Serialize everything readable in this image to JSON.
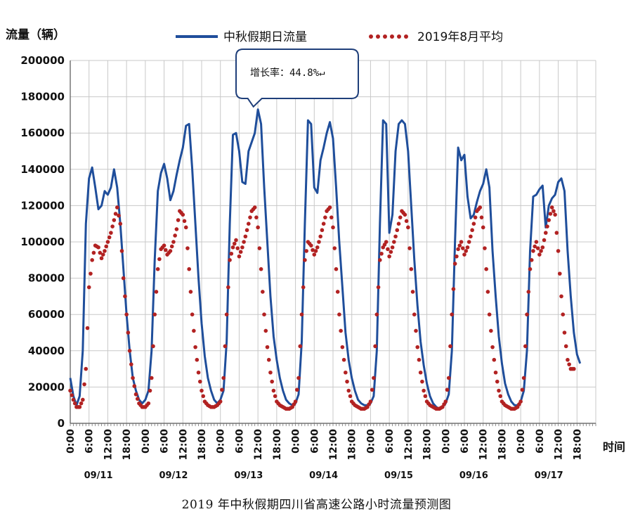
{
  "chart_data": {
    "type": "line",
    "y_unit_label": "流量（辆）",
    "x_axis_title": "时间",
    "caption": "2019 年中秋假期四川省高速公路小时流量预测图",
    "callout": "增长率：44.8%↵",
    "ylim": [
      0,
      200000
    ],
    "y_ticks": [
      0,
      20000,
      40000,
      60000,
      80000,
      100000,
      120000,
      140000,
      160000,
      180000,
      200000
    ],
    "x_tick_labels": [
      "0:00",
      "6:00",
      "12:00",
      "18:00"
    ],
    "days": [
      "09/11",
      "09/12",
      "09/13",
      "09/14",
      "09/15",
      "09/16",
      "09/17"
    ],
    "grid": true,
    "legend_position": "top",
    "series": [
      {
        "name": "中秋假期日流量",
        "style": "solid",
        "color": "#1f4e9b",
        "values": [
          25000,
          15000,
          10000,
          15000,
          40000,
          110000,
          135000,
          141000,
          130000,
          118000,
          120000,
          128000,
          126000,
          130000,
          140000,
          130000,
          110000,
          85000,
          60000,
          40000,
          25000,
          18000,
          13000,
          11000,
          13000,
          18000,
          40000,
          90000,
          128000,
          138000,
          143000,
          135000,
          123000,
          128000,
          137000,
          145000,
          152000,
          164000,
          165000,
          140000,
          110000,
          80000,
          55000,
          37000,
          25000,
          18000,
          13000,
          11000,
          13000,
          18000,
          45000,
          110000,
          159000,
          160000,
          150000,
          133000,
          132000,
          150000,
          155000,
          160000,
          173000,
          165000,
          130000,
          100000,
          70000,
          48000,
          35000,
          25000,
          18000,
          13000,
          11000,
          10000,
          11000,
          16000,
          45000,
          110000,
          167000,
          165000,
          130000,
          127000,
          145000,
          152000,
          160000,
          166000,
          157000,
          130000,
          100000,
          75000,
          50000,
          35000,
          25000,
          18000,
          13000,
          11000,
          10000,
          10000,
          11000,
          15000,
          40000,
          110000,
          167000,
          165000,
          105000,
          115000,
          150000,
          165000,
          167000,
          165000,
          150000,
          120000,
          90000,
          65000,
          45000,
          32000,
          22000,
          15000,
          11000,
          9000,
          8000,
          9000,
          11000,
          16000,
          40000,
          100000,
          152000,
          145000,
          148000,
          125000,
          113000,
          115000,
          122000,
          128000,
          132000,
          140000,
          130000,
          95000,
          70000,
          48000,
          33000,
          22000,
          16000,
          12000,
          10000,
          10000,
          12000,
          18000,
          40000,
          95000,
          125000,
          126000,
          129000,
          131000,
          108000,
          120000,
          124000,
          126000,
          133000,
          135000,
          128000,
          95000,
          70000,
          50000,
          38000,
          33000
        ]
      },
      {
        "name": "2019年8月平均",
        "style": "dotted",
        "color": "#b22222",
        "values": [
          18000,
          13000,
          9000,
          9000,
          13000,
          30000,
          75000,
          90000,
          98000,
          97000,
          91000,
          95000,
          100000,
          105000,
          112000,
          119000,
          110000,
          80000,
          60000,
          40000,
          25000,
          16000,
          11000,
          9000,
          9000,
          11000,
          25000,
          60000,
          85000,
          96000,
          98000,
          93000,
          95000,
          100000,
          107000,
          117000,
          115000,
          108000,
          85000,
          60000,
          42000,
          28000,
          18000,
          12000,
          10000,
          9000,
          9000,
          10000,
          12000,
          25000,
          60000,
          90000,
          97000,
          101000,
          92000,
          97000,
          103000,
          110000,
          117000,
          119000,
          108000,
          85000,
          60000,
          42000,
          28000,
          18000,
          12000,
          10000,
          9000,
          8000,
          8000,
          9000,
          12000,
          25000,
          60000,
          90000,
          100000,
          98000,
          93000,
          97000,
          103000,
          110000,
          117000,
          119000,
          108000,
          85000,
          60000,
          42000,
          28000,
          18000,
          12000,
          10000,
          9000,
          8000,
          8000,
          9000,
          12000,
          25000,
          60000,
          90000,
          97000,
          100000,
          92000,
          97000,
          103000,
          110000,
          117000,
          115000,
          108000,
          85000,
          60000,
          42000,
          28000,
          18000,
          12000,
          10000,
          9000,
          8000,
          8000,
          9000,
          12000,
          25000,
          60000,
          88000,
          96000,
          100000,
          93000,
          97000,
          103000,
          110000,
          117000,
          119000,
          108000,
          85000,
          60000,
          42000,
          28000,
          18000,
          12000,
          10000,
          9000,
          8000,
          8000,
          9000,
          12000,
          25000,
          60000,
          85000,
          95000,
          100000,
          93000,
          97000,
          105000,
          112000,
          119000,
          115000,
          95000,
          70000,
          50000,
          35000,
          30000,
          30000
        ]
      }
    ]
  }
}
